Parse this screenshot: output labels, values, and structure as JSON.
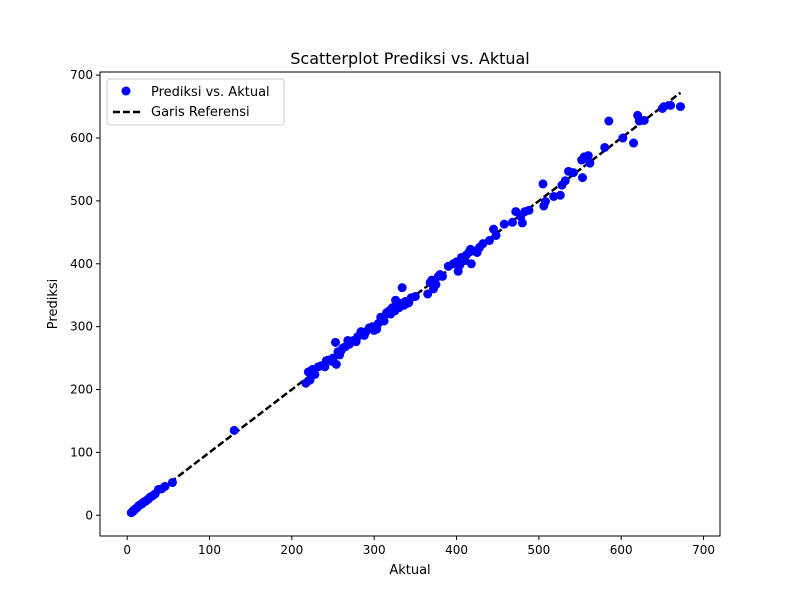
{
  "chart_data": {
    "type": "scatter",
    "title": "Scatterplot Prediksi vs. Aktual",
    "xlabel": "Aktual",
    "ylabel": "Prediksi",
    "xlim": [
      -33,
      720
    ],
    "ylim": [
      -33,
      705
    ],
    "xticks": [
      0,
      100,
      200,
      300,
      400,
      500,
      600,
      700
    ],
    "yticks": [
      0,
      100,
      200,
      300,
      400,
      500,
      600,
      700
    ],
    "grid": false,
    "legend_position": "top-left",
    "legend": [
      {
        "label": "Prediksi vs. Aktual",
        "kind": "marker",
        "color": "#0000ff"
      },
      {
        "label": "Garis Referensi",
        "kind": "dashed-line",
        "color": "#000000"
      }
    ],
    "series": [
      {
        "name": "Prediksi vs. Aktual",
        "color": "#0000ff",
        "points": [
          [
            5,
            4
          ],
          [
            6,
            5
          ],
          [
            7,
            6
          ],
          [
            8,
            8
          ],
          [
            9,
            9
          ],
          [
            10,
            10
          ],
          [
            11,
            11
          ],
          [
            12,
            12
          ],
          [
            14,
            15
          ],
          [
            16,
            17
          ],
          [
            18,
            18
          ],
          [
            20,
            21
          ],
          [
            22,
            22
          ],
          [
            24,
            24
          ],
          [
            26,
            26
          ],
          [
            28,
            29
          ],
          [
            31,
            31
          ],
          [
            34,
            34
          ],
          [
            38,
            41
          ],
          [
            42,
            42
          ],
          [
            46,
            46
          ],
          [
            55,
            52
          ],
          [
            130,
            135
          ],
          [
            217,
            210
          ],
          [
            220,
            228
          ],
          [
            222,
            215
          ],
          [
            225,
            232
          ],
          [
            228,
            224
          ],
          [
            232,
            236
          ],
          [
            236,
            238
          ],
          [
            240,
            236
          ],
          [
            242,
            246
          ],
          [
            245,
            247
          ],
          [
            248,
            245
          ],
          [
            250,
            250
          ],
          [
            253,
            275
          ],
          [
            254,
            240
          ],
          [
            256,
            260
          ],
          [
            258,
            255
          ],
          [
            260,
            262
          ],
          [
            262,
            266
          ],
          [
            265,
            268
          ],
          [
            268,
            278
          ],
          [
            270,
            272
          ],
          [
            272,
            276
          ],
          [
            275,
            278
          ],
          [
            278,
            276
          ],
          [
            280,
            284
          ],
          [
            284,
            292
          ],
          [
            288,
            286
          ],
          [
            290,
            292
          ],
          [
            294,
            298
          ],
          [
            298,
            300
          ],
          [
            300,
            294
          ],
          [
            303,
            296
          ],
          [
            305,
            305
          ],
          [
            308,
            315
          ],
          [
            310,
            314
          ],
          [
            312,
            309
          ],
          [
            315,
            322
          ],
          [
            318,
            325
          ],
          [
            320,
            320
          ],
          [
            322,
            330
          ],
          [
            325,
            325
          ],
          [
            326,
            342
          ],
          [
            330,
            330
          ],
          [
            332,
            337
          ],
          [
            334,
            362
          ],
          [
            336,
            334
          ],
          [
            338,
            340
          ],
          [
            340,
            337
          ],
          [
            342,
            338
          ],
          [
            345,
            346
          ],
          [
            350,
            348
          ],
          [
            365,
            352
          ],
          [
            368,
            370
          ],
          [
            370,
            374
          ],
          [
            372,
            360
          ],
          [
            375,
            367
          ],
          [
            378,
            380
          ],
          [
            380,
            383
          ],
          [
            383,
            380
          ],
          [
            390,
            396
          ],
          [
            396,
            400
          ],
          [
            400,
            403
          ],
          [
            402,
            388
          ],
          [
            404,
            398
          ],
          [
            406,
            410
          ],
          [
            410,
            405
          ],
          [
            412,
            414
          ],
          [
            415,
            418
          ],
          [
            417,
            423
          ],
          [
            418,
            400
          ],
          [
            422,
            420
          ],
          [
            425,
            418
          ],
          [
            428,
            426
          ],
          [
            432,
            432
          ],
          [
            440,
            437
          ],
          [
            445,
            455
          ],
          [
            448,
            445
          ],
          [
            458,
            463
          ],
          [
            468,
            466
          ],
          [
            472,
            483
          ],
          [
            478,
            475
          ],
          [
            480,
            465
          ],
          [
            483,
            483
          ],
          [
            488,
            485
          ],
          [
            505,
            527
          ],
          [
            506,
            492
          ],
          [
            508,
            499
          ],
          [
            518,
            507
          ],
          [
            526,
            509
          ],
          [
            528,
            525
          ],
          [
            532,
            532
          ],
          [
            536,
            547
          ],
          [
            542,
            545
          ],
          [
            552,
            565
          ],
          [
            553,
            537
          ],
          [
            555,
            570
          ],
          [
            560,
            572
          ],
          [
            562,
            560
          ],
          [
            580,
            585
          ],
          [
            585,
            627
          ],
          [
            602,
            600
          ],
          [
            615,
            592
          ],
          [
            620,
            636
          ],
          [
            622,
            627
          ],
          [
            628,
            628
          ],
          [
            650,
            647
          ],
          [
            652,
            650
          ],
          [
            660,
            652
          ],
          [
            672,
            650
          ]
        ]
      },
      {
        "name": "Garis Referensi",
        "color": "#000000",
        "style": "dashed",
        "points": [
          [
            4,
            4
          ],
          [
            672,
            672
          ]
        ]
      }
    ]
  }
}
